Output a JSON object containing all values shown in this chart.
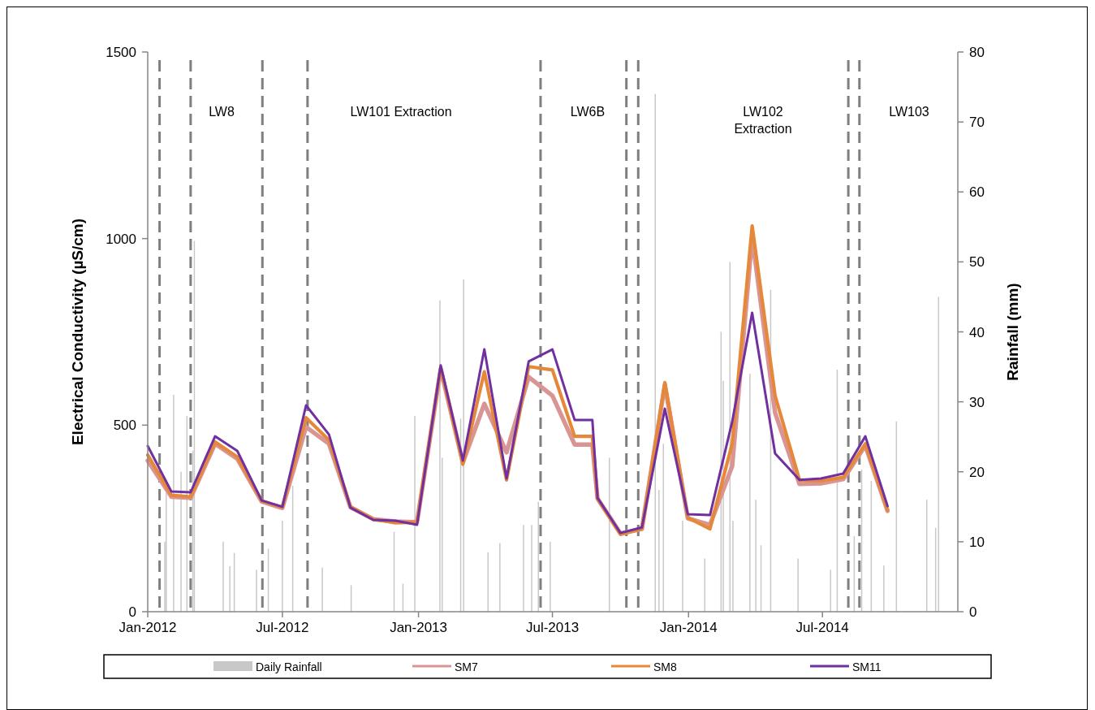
{
  "chart_data": {
    "type": "line",
    "ylabel": "Electrical Conductivity (µS/cm)",
    "y2label": "Rainfall (mm)",
    "x": [
      "2012-01-01",
      "2012-02-02",
      "2012-02-28",
      "2012-04-01",
      "2012-05-01",
      "2012-06-03",
      "2012-07-01",
      "2012-08-02",
      "2012-09-02",
      "2012-10-01",
      "2012-11-01",
      "2012-12-01",
      "2012-12-30",
      "2013-01-31",
      "2013-03-02",
      "2013-03-31",
      "2013-04-30",
      "2013-05-30",
      "2013-07-01",
      "2013-07-31",
      "2013-08-24",
      "2013-08-31",
      "2013-10-01",
      "2013-10-30",
      "2013-11-30",
      "2013-12-31",
      "2014-01-30",
      "2014-03-01",
      "2014-03-28",
      "2014-04-28",
      "2014-05-31",
      "2014-06-29",
      "2014-07-29",
      "2014-08-28",
      "2014-09-27"
    ],
    "series": [
      {
        "name": "Daily Rainfall",
        "type": "bar",
        "axis": "y2",
        "color": "#c8c8c8",
        "x": [
          "2012-01-24",
          "2012-01-26",
          "2012-02-05",
          "2012-02-15",
          "2012-02-23",
          "2012-03-02",
          "2012-03-04",
          "2012-04-12",
          "2012-04-21",
          "2012-04-27",
          "2012-05-27",
          "2012-06-12",
          "2012-07-01",
          "2012-07-15",
          "2012-08-24",
          "2012-10-02",
          "2012-11-29",
          "2012-12-11",
          "2012-12-27",
          "2013-01-30",
          "2013-02-02",
          "2013-02-27",
          "2013-03-03",
          "2013-04-05",
          "2013-04-21",
          "2013-05-23",
          "2013-06-03",
          "2013-06-12",
          "2013-06-28",
          "2013-09-16",
          "2013-11-17",
          "2013-11-22",
          "2013-11-28",
          "2013-12-24",
          "2014-01-23",
          "2014-02-14",
          "2014-02-17",
          "2014-02-26",
          "2014-03-02",
          "2014-03-25",
          "2014-04-02",
          "2014-04-09",
          "2014-04-22",
          "2014-05-29",
          "2014-07-12",
          "2014-07-21",
          "2014-08-13",
          "2014-08-23",
          "2014-09-05",
          "2014-09-22",
          "2014-10-09",
          "2014-11-19",
          "2014-12-01",
          "2014-12-05"
        ],
        "values": [
          10,
          17,
          31,
          20,
          28,
          23,
          53,
          10,
          6.5,
          8.4,
          6,
          9,
          13,
          18,
          6.3,
          3.8,
          11.4,
          4,
          28,
          44.5,
          22,
          27.6,
          47.5,
          8.5,
          9.8,
          12.4,
          12.4,
          15.7,
          10,
          22,
          74,
          17.4,
          24,
          13,
          7.6,
          40,
          33,
          50,
          13,
          34,
          16,
          9.5,
          46,
          7.6,
          6,
          34.6,
          10.8,
          20.3,
          18.7,
          6.6,
          27.2,
          16,
          12,
          45
        ]
      },
      {
        "name": "SM7",
        "color": "#d99594",
        "values": [
          405,
          308,
          305,
          450,
          410,
          295,
          278,
          495,
          450,
          280,
          248,
          242,
          240,
          650,
          400,
          557,
          427,
          629,
          579,
          448,
          448,
          303,
          210,
          222,
          608,
          250,
          233,
          390,
          1004,
          533,
          342,
          344,
          355,
          445,
          270
        ]
      },
      {
        "name": "SM8",
        "color": "#e6883a",
        "values": [
          420,
          312,
          308,
          455,
          415,
          297,
          280,
          520,
          460,
          281,
          248,
          238,
          240,
          655,
          395,
          643,
          353,
          657,
          648,
          470,
          470,
          303,
          207,
          222,
          614,
          252,
          222,
          450,
          1034,
          579,
          353,
          351,
          360,
          450,
          272
        ]
      },
      {
        "name": "SM11",
        "color": "#7030a0",
        "values": [
          444,
          322,
          320,
          470,
          431,
          298,
          281,
          553,
          475,
          279,
          246,
          244,
          233,
          660,
          405,
          703,
          357,
          671,
          703,
          514,
          514,
          305,
          211,
          226,
          544,
          261,
          259,
          509,
          801,
          424,
          353,
          357,
          370,
          470,
          283
        ]
      }
    ],
    "xlim": [
      "2012-01-01",
      "2014-12-31"
    ],
    "xticks": [
      {
        "value": "2012-01-01",
        "label": "Jan-2012"
      },
      {
        "value": "2012-07-01",
        "label": "Jul-2012"
      },
      {
        "value": "2013-01-01",
        "label": "Jan-2013"
      },
      {
        "value": "2013-07-01",
        "label": "Jul-2013"
      },
      {
        "value": "2014-01-01",
        "label": "Jan-2014"
      },
      {
        "value": "2014-07-01",
        "label": "Jul-2014"
      }
    ],
    "ylim": [
      0,
      1500
    ],
    "yticks": [
      0,
      500,
      1000,
      1500
    ],
    "y2lim": [
      0,
      80
    ],
    "y2ticks": [
      0,
      10,
      20,
      30,
      40,
      50,
      60,
      70,
      80
    ],
    "ref_lines": [
      {
        "axis": "x",
        "value": "2012-01-17",
        "color": "#7f7f7f",
        "line_style": "dashed"
      },
      {
        "axis": "x",
        "value": "2012-02-28",
        "color": "#7f7f7f",
        "line_style": "dashed"
      },
      {
        "axis": "x",
        "value": "2012-06-04",
        "color": "#7f7f7f",
        "line_style": "dashed"
      },
      {
        "axis": "x",
        "value": "2012-08-04",
        "color": "#7f7f7f",
        "line_style": "dashed"
      },
      {
        "axis": "x",
        "value": "2013-06-15",
        "color": "#7f7f7f",
        "line_style": "dashed"
      },
      {
        "axis": "x",
        "value": "2013-10-09",
        "color": "#7f7f7f",
        "line_style": "dashed"
      },
      {
        "axis": "x",
        "value": "2013-10-25",
        "color": "#7f7f7f",
        "line_style": "dashed"
      },
      {
        "axis": "x",
        "value": "2014-08-05",
        "color": "#7f7f7f",
        "line_style": "dashed"
      },
      {
        "axis": "x",
        "value": "2014-08-20",
        "color": "#7f7f7f",
        "line_style": "dashed"
      }
    ],
    "annotations": [
      "LW8",
      "LW101 Extraction",
      "LW6B",
      "LW102 Extraction",
      "LW103"
    ],
    "legend": "bottom"
  }
}
